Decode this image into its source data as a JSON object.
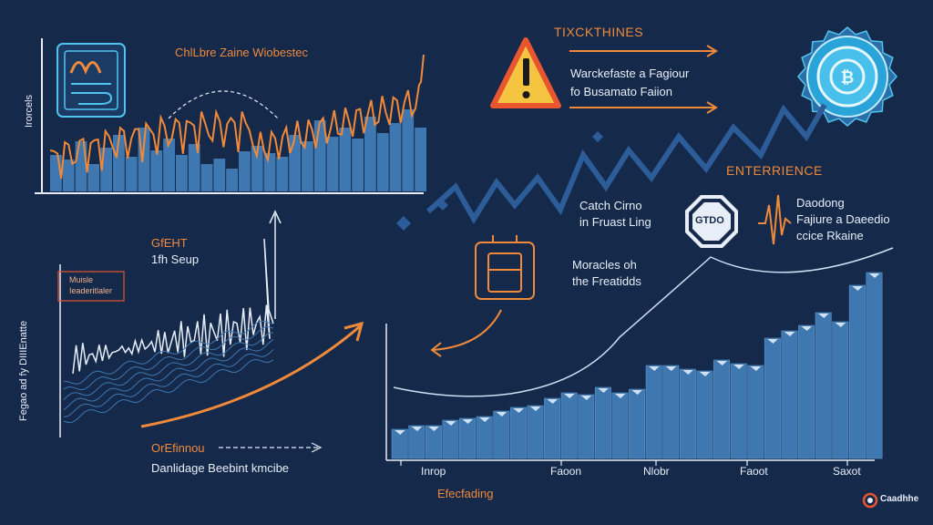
{
  "colors": {
    "background": "#15294a",
    "accent_orange": "#f08a3a",
    "bar_blue": "#3f77b0",
    "line_light": "#cfe0f2",
    "warning_red": "#e8552f",
    "warning_yellow": "#f5c542",
    "badge_cyan": "#4fc4f0"
  },
  "icons": [
    "monitor-chart-icon",
    "warning-icon",
    "badge-coin-icon",
    "stop-sign-icon",
    "pulse-icon",
    "device-icon",
    "logo-icon"
  ],
  "top_left": {
    "title": "ChlLbre Zaine Wiobestec",
    "ylabel": "Irorcels"
  },
  "top_right": {
    "heading": "TIXCKTHINES",
    "line1": "Warckefaste a Fagiour",
    "line2": "fo Busamato Faiion",
    "heading2": "ENTERRIENCE"
  },
  "middle_left": {
    "title1": "GfEHT",
    "title2": "1fh Seup",
    "boxed": "Muisle\nIeaderitlaler",
    "side_label": "Fegao ad fy DIIIEnatte"
  },
  "middle": {
    "catch1": "Catch Cirno",
    "catch2": "in Fruast Ling",
    "stop": "GTDO",
    "decode1": "Daodong",
    "decode2": "Fajiure a Daeedio",
    "decode3": "ccice Rkaine",
    "mid1": "Moracles oh",
    "mid2": "the Freatidds"
  },
  "bottom_left": {
    "title": "OrEfinnou",
    "subtitle": "Danlidage Beebint kmcibe"
  },
  "bottom_right": {
    "xlabel": "Efecfading",
    "ticks": [
      "Inrop",
      "Faoon",
      "Nlobr",
      "Faoot",
      "Saxot"
    ],
    "logo": "Caadhhe"
  }
}
